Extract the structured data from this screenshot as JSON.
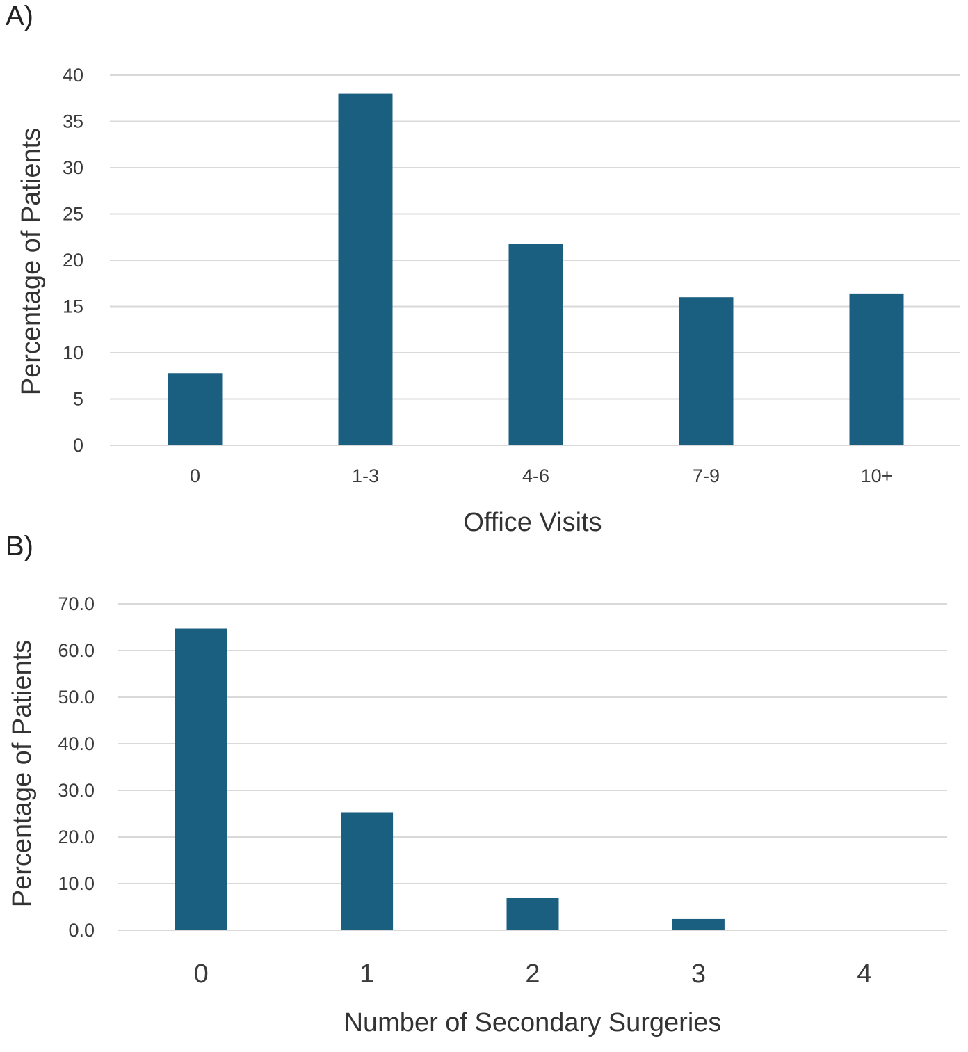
{
  "panels": [
    {
      "label": "A)"
    },
    {
      "label": "B)"
    }
  ],
  "colors": {
    "bar": "#1a5e80",
    "grid": "#d9d9d9",
    "text": "#3b3b3b"
  },
  "chart_data": [
    {
      "type": "bar",
      "title": "",
      "categories": [
        "0",
        "1-3",
        "4-6",
        "7-9",
        "10+"
      ],
      "values": [
        7.8,
        38.0,
        21.8,
        16.0,
        16.4
      ],
      "xlabel": "Office Visits",
      "ylabel": "Percentage of Patients",
      "ylim": [
        0,
        40
      ],
      "yticks": [
        0,
        5,
        10,
        15,
        20,
        25,
        30,
        35,
        40
      ],
      "ytick_labels": [
        "0",
        "5",
        "10",
        "15",
        "20",
        "25",
        "30",
        "35",
        "40"
      ],
      "grid": true,
      "legend": "none"
    },
    {
      "type": "bar",
      "title": "",
      "categories": [
        "0",
        "1",
        "2",
        "3",
        "4"
      ],
      "values": [
        64.7,
        25.3,
        6.9,
        2.4,
        0.0
      ],
      "xlabel": "Number of Secondary Surgeries",
      "ylabel": "Percentage of Patients",
      "ylim": [
        0,
        70
      ],
      "yticks": [
        0,
        10,
        20,
        30,
        40,
        50,
        60,
        70
      ],
      "ytick_labels": [
        "0.0",
        "10.0",
        "20.0",
        "30.0",
        "40.0",
        "50.0",
        "60.0",
        "70.0"
      ],
      "grid": true,
      "legend": "none"
    }
  ]
}
